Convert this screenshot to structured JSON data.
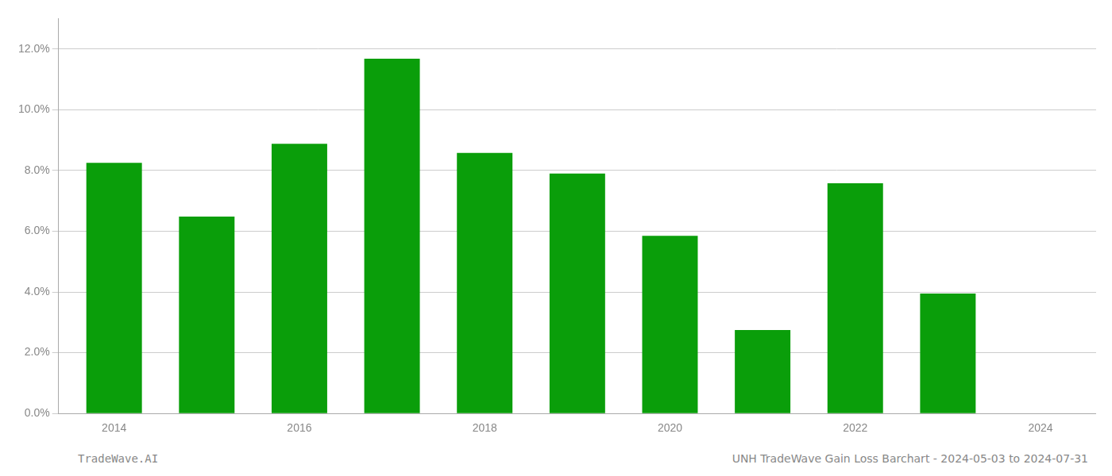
{
  "chart_data": {
    "type": "bar",
    "title": "UNH TradeWave Gain Loss Barchart - 2024-05-03 to 2024-07-31",
    "annotations": [
      "TradeWave.AI"
    ],
    "x": [
      2014,
      2015,
      2016,
      2017,
      2018,
      2019,
      2020,
      2021,
      2022,
      2023
    ],
    "values": [
      0.0825,
      0.0648,
      0.0888,
      0.1168,
      0.0858,
      0.079,
      0.0585,
      0.0275,
      0.0758,
      0.0395
    ],
    "color": "#0a9e0a",
    "background_color": "#ffffff",
    "tick_label_color": "#888888",
    "footer_color": "#888888",
    "grid_color": "#cccccc",
    "xlim": [
      2013.4,
      2024.6
    ],
    "xticks": [
      2014,
      2016,
      2018,
      2020,
      2022,
      2024
    ],
    "ylim": [
      0,
      0.13
    ],
    "yticks": [
      {
        "value": 0.0,
        "label": "0.0%"
      },
      {
        "value": 0.02,
        "label": "2.0%"
      },
      {
        "value": 0.04,
        "label": "4.0%"
      },
      {
        "value": 0.06,
        "label": "6.0%"
      },
      {
        "value": 0.08,
        "label": "8.0%"
      },
      {
        "value": 0.1,
        "label": "10.0%"
      },
      {
        "value": 0.12,
        "label": "12.0%"
      }
    ],
    "grid": true
  }
}
